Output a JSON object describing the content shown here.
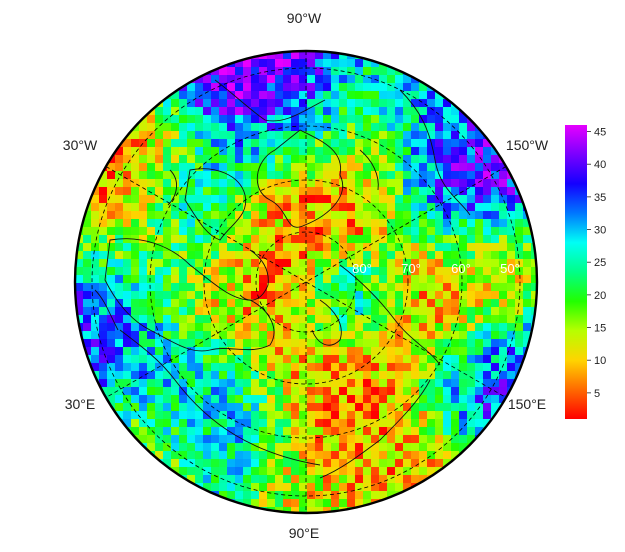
{
  "map": {
    "projection": "north polar stereographic",
    "longitude_labels": {
      "top": "90°W",
      "upper_left": "30°W",
      "upper_right": "150°W",
      "lower_left": "30°E",
      "lower_right": "150°E",
      "bottom": "90°E"
    },
    "latitude_labels": [
      "80°",
      "70°",
      "60°",
      "50°"
    ],
    "colorbar": {
      "ticks": [
        "45",
        "40",
        "35",
        "30",
        "25",
        "20",
        "15",
        "10",
        "5"
      ],
      "range": [
        1,
        46
      ],
      "colors": [
        "#ff0000",
        "#ff6a00",
        "#ffd400",
        "#b7ff00",
        "#22ff00",
        "#00ff88",
        "#00fff5",
        "#0077ff",
        "#1400ff",
        "#7a00ff",
        "#e600ff"
      ]
    }
  }
}
